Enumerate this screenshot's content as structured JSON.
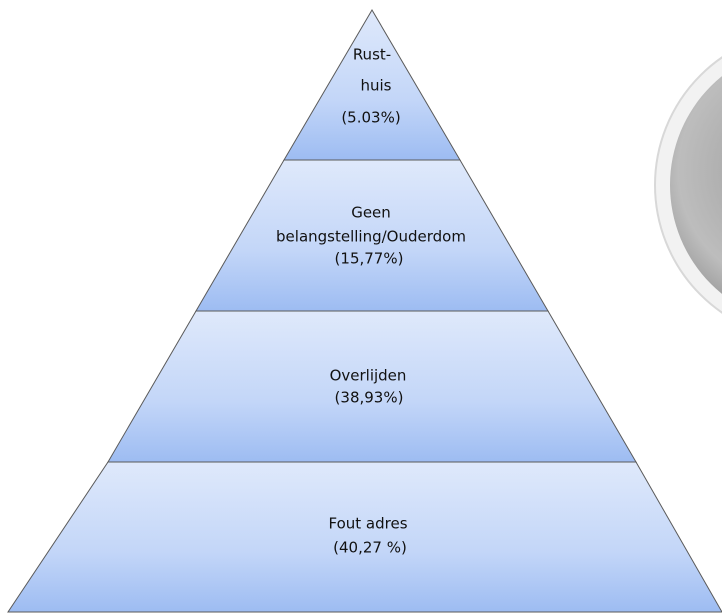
{
  "pyramid": {
    "layers": [
      {
        "lines": [
          "Rust-",
          "huis",
          "(5.03%)"
        ]
      },
      {
        "lines": [
          "Geen",
          "belangstelling/Ouderdom",
          "(15,77%)"
        ]
      },
      {
        "lines": [
          "Overlijden",
          "(38,93%)"
        ]
      },
      {
        "lines": [
          "Fout adres",
          "(40,27 %)"
        ]
      }
    ]
  }
}
